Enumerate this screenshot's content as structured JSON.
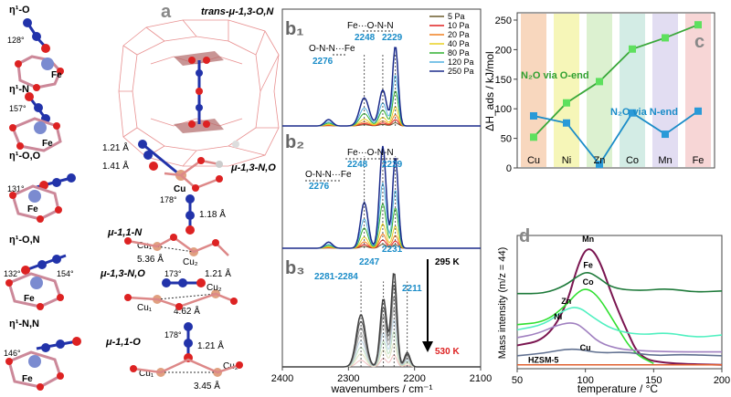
{
  "panel_a": {
    "letter": "a",
    "fe": "Fe",
    "cu": "Cu",
    "cu1": "Cu₁",
    "cu2": "Cu₂",
    "cage_label": "trans-μ-1,3-O,N",
    "structures": [
      {
        "label": "η¹-O",
        "angle": "128°"
      },
      {
        "label": "η¹-N",
        "angle": "157°"
      },
      {
        "label": "η¹-O,O",
        "angle": "131°"
      },
      {
        "label": "η¹-O,N",
        "angle": "132°",
        "angle2": "154°"
      },
      {
        "label": "η¹-N,N",
        "angle": "146°"
      }
    ],
    "mu13NO": {
      "label": "μ-1,3-N,O",
      "d1": "1.21 Å",
      "d2": "1.41 Å"
    },
    "mu11N": {
      "label": "μ-1,1-N",
      "angle": "178°",
      "d1": "1.18 Å",
      "d2": "5.36 Å"
    },
    "mu13NOb": {
      "label": "μ-1,3-N,O",
      "angle": "173°",
      "d1": "1.21 Å",
      "d2": "4.62 Å"
    },
    "mu11O": {
      "label": "μ-1,1-O",
      "angle": "178°",
      "d1": "1.21 Å",
      "d2": "3.45 Å"
    }
  },
  "panel_b": {
    "xlabel": "wavenumbers / cm⁻¹",
    "xticks": [
      2400,
      2300,
      2200,
      2100
    ],
    "xlim": [
      2400,
      2100
    ],
    "legend": [
      "5 Pa",
      "10 Pa",
      "20 Pa",
      "40 Pa",
      "80 Pa",
      "120 Pa",
      "250 Pa"
    ],
    "legend_colors": [
      "#6b5a2a",
      "#e02020",
      "#f08020",
      "#e8d020",
      "#30b030",
      "#50b0e0",
      "#1a2a8a"
    ],
    "b1": {
      "letter": "b₁",
      "annot_top": "Fe···O-N-N",
      "annot_left": "O-N-N···Fe",
      "peak_a": "2248",
      "peak_b": "2229",
      "peak_c": "2276"
    },
    "b2": {
      "letter": "b₂",
      "annot_top": "Fe···O-N-N",
      "annot_left": "O-N-N···Fe",
      "peak_a": "2248",
      "peak_b": "2229",
      "peak_c": "2276"
    },
    "b3": {
      "letter": "b₃",
      "peak_a": "2247",
      "peak_b": "2231",
      "peak_c": "2281-2284",
      "peak_d": "2211",
      "temp_top": "295 K",
      "temp_bottom": "530 K"
    }
  },
  "panel_c": {
    "letter": "c"
  },
  "panel_d": {
    "letter": "d"
  },
  "chart_data": [
    {
      "type": "line",
      "categories": [
        "Cu",
        "Ni",
        "Zn",
        "Co",
        "Mn",
        "Fe"
      ],
      "ylabel": "ΔH_ads / kJ/mol",
      "ylim": [
        0,
        250
      ],
      "yticks": [
        0,
        50,
        100,
        150,
        200,
        250
      ],
      "band_colors": [
        "#f5c9a8",
        "#f3f3a0",
        "#d0ecc0",
        "#c4e6dc",
        "#d8d2ee",
        "#f4c8c8"
      ],
      "series": [
        {
          "name": "N₂O via O-end",
          "color": "#3aa83a",
          "marker": "#5ee05e",
          "values": [
            52,
            110,
            146,
            201,
            220,
            242
          ]
        },
        {
          "name": "N₂O via N-end",
          "color": "#1a8cc8",
          "marker": "#2a9ad8",
          "values": [
            88,
            76,
            6,
            93,
            57,
            96
          ]
        }
      ]
    },
    {
      "type": "line",
      "xlabel": "temperature / °C",
      "ylabel": "Mass intensity (m/z = 44)",
      "xlim": [
        50,
        200
      ],
      "xticks": [
        50,
        100,
        150,
        200
      ],
      "series": [
        {
          "name": "Mn",
          "color": "#7a1550",
          "x": [
            50,
            70,
            85,
            95,
            102,
            110,
            120,
            130,
            140,
            160,
            200
          ],
          "y": [
            0.18,
            0.22,
            0.45,
            0.82,
            0.95,
            0.85,
            0.55,
            0.3,
            0.08,
            0.04,
            0.03
          ]
        },
        {
          "name": "Fe",
          "color": "#1e7a3a",
          "x": [
            50,
            70,
            85,
            95,
            102,
            110,
            120,
            140,
            160,
            180,
            200
          ],
          "y": [
            0.58,
            0.58,
            0.64,
            0.72,
            0.75,
            0.7,
            0.62,
            0.6,
            0.62,
            0.59,
            0.6
          ]
        },
        {
          "name": "Co",
          "color": "#30e030",
          "x": [
            50,
            70,
            85,
            95,
            102,
            110,
            120,
            135,
            150
          ],
          "y": [
            0.34,
            0.36,
            0.48,
            0.6,
            0.62,
            0.55,
            0.38,
            0.12,
            0.04
          ]
        },
        {
          "name": "Zn",
          "color": "#50f0c0",
          "x": [
            50,
            70,
            85,
            95,
            105,
            120,
            140,
            160,
            180,
            200
          ],
          "y": [
            0.3,
            0.34,
            0.46,
            0.48,
            0.4,
            0.3,
            0.26,
            0.28,
            0.24,
            0.26
          ]
        },
        {
          "name": "Ni",
          "color": "#a080c0",
          "x": [
            50,
            65,
            80,
            92,
            100,
            110,
            125,
            140,
            160,
            200
          ],
          "y": [
            0.24,
            0.27,
            0.34,
            0.36,
            0.3,
            0.2,
            0.15,
            0.14,
            0.13,
            0.13
          ]
        },
        {
          "name": "Cu",
          "color": "#607090",
          "x": [
            50,
            70,
            90,
            110,
            130,
            150,
            170,
            200
          ],
          "y": [
            0.1,
            0.12,
            0.16,
            0.12,
            0.13,
            0.1,
            0.11,
            0.1
          ]
        },
        {
          "name": "HZSM-5",
          "color": "#e06030",
          "x": [
            50,
            200
          ],
          "y": [
            0.03,
            0.03
          ]
        }
      ]
    }
  ]
}
